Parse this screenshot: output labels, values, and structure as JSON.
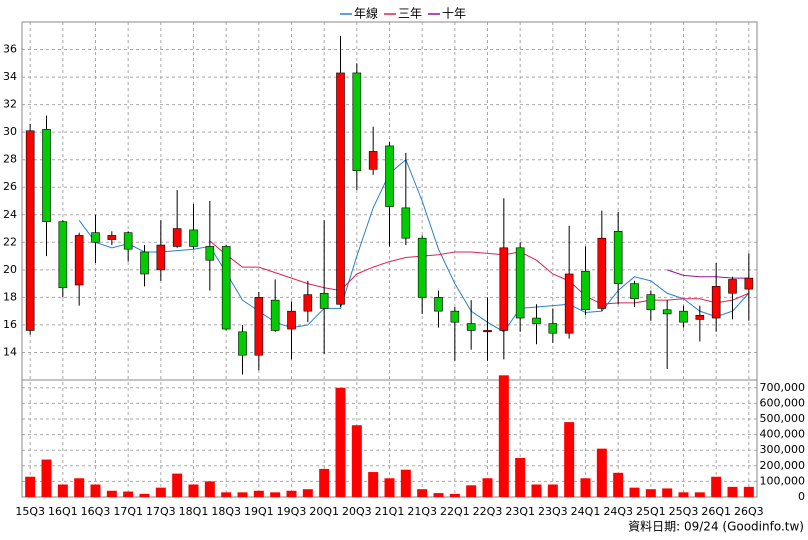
{
  "chart_data": {
    "type": "candlestick",
    "legend": [
      {
        "name": "年線",
        "color": "#2a7fd4"
      },
      {
        "name": "三年",
        "color": "#dd2255"
      },
      {
        "name": "十年",
        "color": "#9a109a"
      }
    ],
    "categories": [
      "15Q3",
      null,
      "16Q1",
      null,
      "16Q3",
      null,
      "17Q1",
      null,
      "17Q3",
      null,
      "18Q1",
      null,
      "18Q3",
      null,
      "19Q1",
      null,
      "19Q3",
      null,
      "20Q1",
      null,
      "20Q3",
      null,
      "21Q1",
      null,
      "21Q3",
      null,
      "22Q1",
      null,
      "22Q3",
      null,
      "23Q1",
      null,
      "23Q3",
      null,
      "24Q1",
      null,
      "24Q3",
      null,
      "25Q1",
      null,
      "25Q3",
      null,
      "26Q1",
      null,
      "26Q3"
    ],
    "open": [
      15.6,
      30.2,
      23.5,
      18.9,
      22.7,
      22.2,
      22.7,
      21.3,
      20.0,
      21.7,
      22.9,
      21.7,
      21.7,
      15.5,
      13.8,
      17.8,
      15.7,
      17.0,
      18.3,
      17.5,
      34.3,
      27.3,
      29.0,
      24.5,
      22.3,
      18.0,
      17.0,
      16.1,
      15.5,
      15.6,
      21.6,
      16.5,
      16.1,
      15.4,
      19.9,
      17.2,
      22.8,
      19.0,
      18.2,
      17.1,
      17.0,
      16.4,
      16.5,
      18.3,
      18.6
    ],
    "high": [
      30.6,
      31.2,
      23.6,
      22.7,
      24.0,
      22.8,
      22.8,
      21.8,
      23.6,
      25.8,
      24.8,
      25.0,
      21.8,
      16.0,
      18.4,
      19.3,
      17.7,
      19.2,
      23.6,
      37.0,
      35.0,
      30.4,
      29.3,
      28.5,
      22.5,
      18.5,
      17.3,
      17.8,
      18.0,
      25.2,
      22.0,
      17.5,
      17.2,
      23.2,
      21.7,
      24.3,
      24.2,
      19.2,
      18.5,
      17.8,
      17.4,
      17.4,
      20.5,
      19.5,
      21.2
    ],
    "low": [
      15.3,
      21.0,
      18.0,
      17.4,
      20.5,
      21.8,
      20.6,
      18.8,
      19.2,
      21.6,
      21.5,
      18.5,
      15.6,
      12.4,
      12.7,
      15.5,
      13.5,
      16.2,
      13.9,
      17.3,
      25.8,
      26.9,
      21.7,
      21.8,
      16.8,
      15.8,
      13.4,
      14.2,
      13.4,
      13.5,
      15.5,
      14.6,
      14.7,
      15.0,
      16.7,
      17.0,
      17.5,
      17.3,
      16.3,
      12.8,
      15.8,
      14.8,
      15.5,
      16.4,
      16.3
    ],
    "close": [
      30.1,
      23.5,
      18.7,
      22.5,
      22.0,
      22.5,
      21.5,
      19.7,
      21.8,
      23.0,
      21.7,
      20.7,
      15.7,
      13.8,
      18.0,
      15.6,
      17.0,
      18.2,
      17.2,
      34.3,
      27.2,
      28.6,
      24.6,
      22.3,
      18.0,
      17.0,
      16.2,
      15.6,
      15.6,
      21.6,
      16.5,
      16.1,
      15.4,
      19.7,
      17.1,
      22.3,
      19.0,
      17.9,
      17.1,
      16.8,
      16.2,
      16.7,
      18.8,
      19.3,
      19.4
    ],
    "volume": [
      130000,
      240000,
      80000,
      120000,
      80000,
      40000,
      35000,
      20000,
      60000,
      150000,
      80000,
      100000,
      30000,
      30000,
      40000,
      30000,
      40000,
      50000,
      180000,
      700000,
      460000,
      160000,
      120000,
      175000,
      50000,
      25000,
      20000,
      75000,
      120000,
      780000,
      250000,
      80000,
      80000,
      480000,
      120000,
      310000,
      155000,
      60000,
      50000,
      55000,
      30000,
      30000,
      130000,
      65000,
      65000
    ],
    "lines": [
      [
        null,
        null,
        null,
        23.6,
        22.0,
        21.6,
        21.9,
        21.3,
        21.3,
        21.4,
        21.5,
        21.7,
        19.8,
        17.8,
        17.0,
        16.2,
        15.8,
        16.0,
        17.2,
        17.2,
        21.0,
        24.5,
        27.0,
        28.0,
        25.0,
        21.5,
        19.0,
        17.0,
        16.2,
        15.5,
        17.2,
        17.3,
        17.4,
        17.5,
        16.9,
        17.0,
        18.5,
        19.5,
        19.2,
        18.3,
        17.9,
        17.0,
        16.6,
        17.0,
        18.3
      ],
      [
        null,
        null,
        null,
        null,
        null,
        null,
        null,
        null,
        null,
        null,
        null,
        22.1,
        21.1,
        20.2,
        20.2,
        19.8,
        19.4,
        19.0,
        18.7,
        18.5,
        19.7,
        20.2,
        20.6,
        20.9,
        21.0,
        21.1,
        21.3,
        21.3,
        21.2,
        21.1,
        21.3,
        20.7,
        19.7,
        19.2,
        18.1,
        17.5,
        17.6,
        17.6,
        17.8,
        17.8,
        17.9,
        17.9,
        17.6,
        17.8,
        18.3
      ],
      [
        null,
        null,
        null,
        null,
        null,
        null,
        null,
        null,
        null,
        null,
        null,
        null,
        null,
        null,
        null,
        null,
        null,
        null,
        null,
        null,
        null,
        null,
        null,
        null,
        null,
        null,
        null,
        null,
        null,
        null,
        null,
        null,
        null,
        null,
        null,
        null,
        null,
        null,
        null,
        20.0,
        19.6,
        19.5,
        19.5,
        19.4,
        19.4
      ]
    ],
    "up_color": "#ff0000",
    "down_color": "#00cc00",
    "volume_color": "#ff0000",
    "ylim": [
      12,
      38
    ],
    "yticks": [
      14,
      16,
      18,
      20,
      22,
      24,
      26,
      28,
      30,
      32,
      34,
      36
    ],
    "y2lim": [
      0,
      750000
    ],
    "y2ticks": [
      0,
      {
        "value": 100000,
        "label": "100,000"
      },
      {
        "value": 200000,
        "label": "200,000"
      },
      {
        "value": 300000,
        "label": "300,000"
      },
      {
        "value": 400000,
        "label": "400,000"
      },
      {
        "value": 500000,
        "label": "500,000"
      },
      {
        "value": 600000,
        "label": "600,000"
      },
      {
        "value": 700000,
        "label": "700,000"
      }
    ],
    "grid": true,
    "source": "資料日期: 09/24 (Goodinfo.tw)"
  }
}
